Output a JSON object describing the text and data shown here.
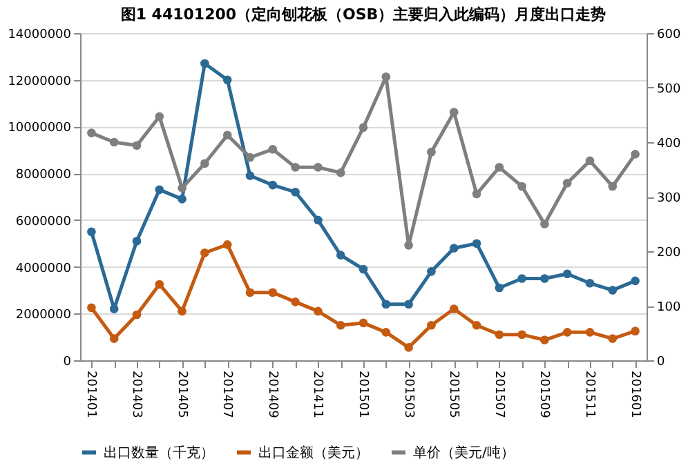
{
  "chart_data": {
    "type": "line",
    "title": "图1 44101200（定向刨花板（OSB）主要归入此编码）月度出口走势",
    "categories": [
      "201401",
      null,
      "201403",
      null,
      "201405",
      null,
      "201407",
      null,
      "201409",
      null,
      "201411",
      null,
      "201501",
      null,
      "201503",
      null,
      "201505",
      null,
      "201507",
      null,
      "201509",
      null,
      "201511",
      null,
      "201601"
    ],
    "series": [
      {
        "name": "出口数量（千克）",
        "color": "#2a6a95",
        "values": [
          5500000,
          2200000,
          5100000,
          7300000,
          6900000,
          12700000,
          12000000,
          7900000,
          7500000,
          7200000,
          6000000,
          4500000,
          3900000,
          2400000,
          2400000,
          3800000,
          4800000,
          5000000,
          3100000,
          3500000,
          3500000,
          3700000,
          3300000,
          3000000,
          3400000
        ]
      },
      {
        "name": "出口金额（美元）",
        "color": "#c55a11",
        "values": [
          2250000,
          930000,
          1950000,
          3250000,
          2100000,
          4600000,
          4950000,
          2900000,
          2900000,
          2500000,
          2100000,
          1500000,
          1600000,
          1200000,
          550000,
          1500000,
          2200000,
          1500000,
          1100000,
          1100000,
          870000,
          1200000,
          1200000,
          930000,
          1250000
        ]
      },
      {
        "name": "单价（美元/吨）",
        "color": "#7f7f7f",
        "axis": "y2",
        "values": [
          417,
          400,
          394,
          447,
          316,
          361,
          413,
          372,
          387,
          354,
          354,
          344,
          427,
          520,
          211,
          382,
          455,
          305,
          354,
          319,
          250,
          325,
          366,
          319,
          378
        ]
      }
    ],
    "ylim": [
      0,
      14000000
    ],
    "yticks": [
      0,
      2000000,
      4000000,
      6000000,
      8000000,
      10000000,
      12000000,
      14000000
    ],
    "y2lim": [
      0,
      600
    ],
    "y2ticks": [
      0,
      100,
      200,
      300,
      400,
      500,
      600
    ],
    "grid": "y",
    "legend": "bottom",
    "marker": "circle",
    "line_style": "solid"
  }
}
